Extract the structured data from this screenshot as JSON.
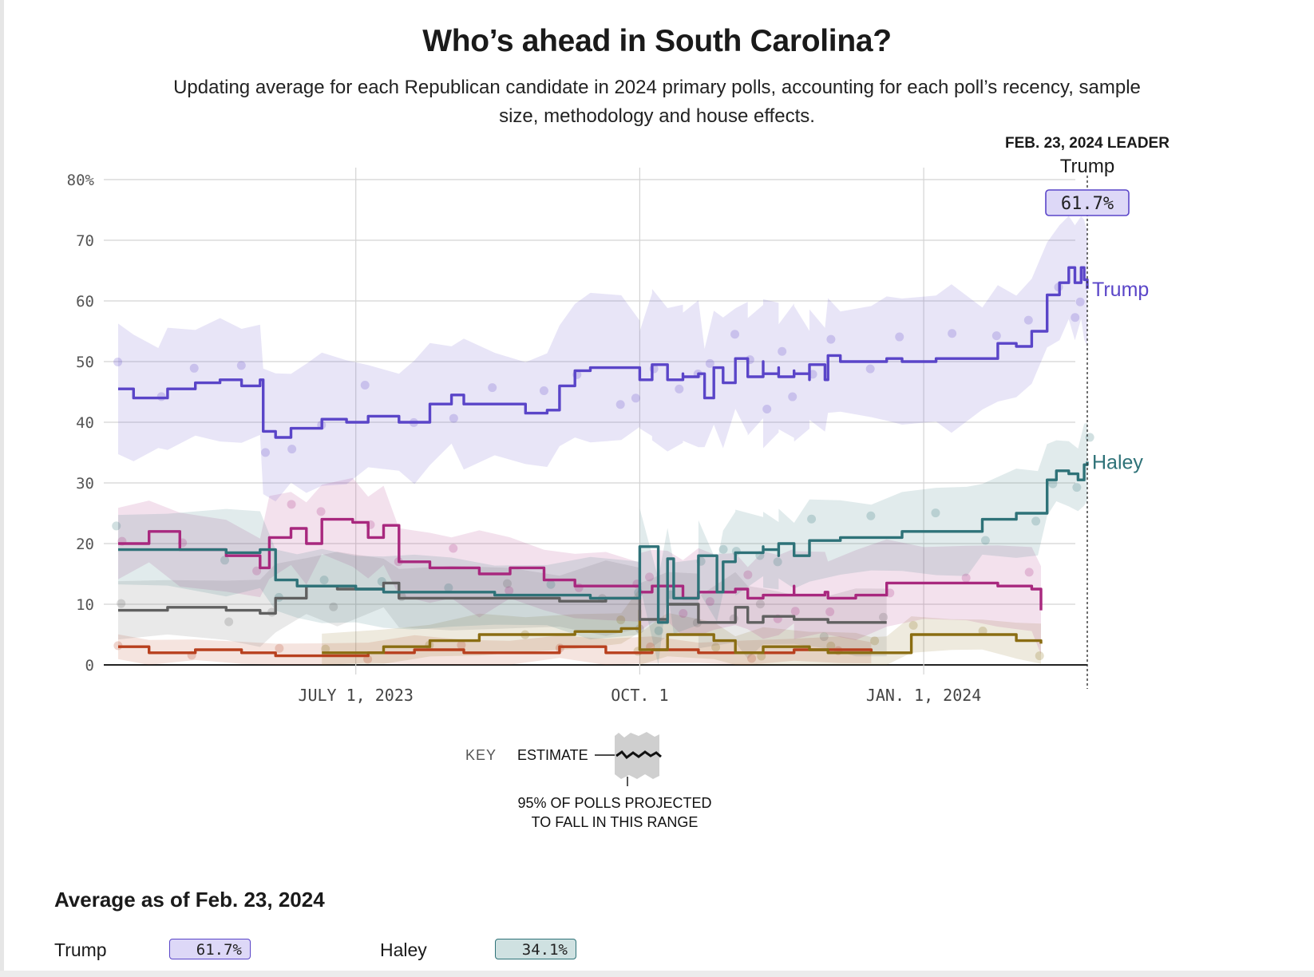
{
  "title": "Who’s ahead in South Carolina?",
  "subtitle": "Updating average for each Republican candidate in 2024 primary polls, accounting for each poll’s recency, sample size, methodology and house effects.",
  "leader": {
    "heading": "FEB. 23, 2024 LEADER",
    "name": "Trump",
    "value": "61.7%"
  },
  "key": {
    "label": "KEY",
    "estimate": "ESTIMATE",
    "range_line1": "95% OF POLLS PROJECTED",
    "range_line2": "TO FALL IN THIS RANGE"
  },
  "average": {
    "heading": "Average as of Feb. 23, 2024",
    "rows": [
      {
        "name": "Trump",
        "value": "61.7%"
      },
      {
        "name": "Haley",
        "value": "34.1%"
      }
    ]
  },
  "colors": {
    "trump": "#5a45c8",
    "haley": "#2e7278",
    "magenta": "#a8287e",
    "gray": "#606060",
    "olive": "#8a6d12",
    "orange": "#b8401e",
    "trump_badge": "#ddd8f7",
    "haley_badge": "#cfe1e1"
  },
  "chart_data": {
    "type": "line",
    "x_ticks": [
      "JULY 1, 2023",
      "OCT. 1",
      "JAN. 1, 2024"
    ],
    "x_range": [
      "2023-04-15",
      "2024-02-23"
    ],
    "y_ticks": [
      "80%",
      "70",
      "60",
      "50",
      "40",
      "30",
      "20",
      "10",
      "0"
    ],
    "ylim": [
      0,
      80
    ],
    "grid": true,
    "series": [
      {
        "name": "Trump",
        "color_key": "trump",
        "band_width": 10,
        "labeled": true,
        "points": [
          [
            "2023-04-15",
            45.5
          ],
          [
            "2023-04-20",
            44
          ],
          [
            "2023-04-28",
            44
          ],
          [
            "2023-05-01",
            45.5
          ],
          [
            "2023-05-10",
            46.5
          ],
          [
            "2023-05-18",
            47
          ],
          [
            "2023-05-25",
            46
          ],
          [
            "2023-05-31",
            47
          ],
          [
            "2023-06-01",
            38.5
          ],
          [
            "2023-06-05",
            37.5
          ],
          [
            "2023-06-10",
            39
          ],
          [
            "2023-06-15",
            39
          ],
          [
            "2023-06-20",
            40.5
          ],
          [
            "2023-06-28",
            40
          ],
          [
            "2023-07-05",
            41
          ],
          [
            "2023-07-15",
            40
          ],
          [
            "2023-07-20",
            40
          ],
          [
            "2023-07-25",
            43
          ],
          [
            "2023-08-01",
            44.5
          ],
          [
            "2023-08-05",
            43
          ],
          [
            "2023-08-15",
            43
          ],
          [
            "2023-08-25",
            41.5
          ],
          [
            "2023-09-01",
            42
          ],
          [
            "2023-09-05",
            46
          ],
          [
            "2023-09-10",
            48.5
          ],
          [
            "2023-09-15",
            49
          ],
          [
            "2023-09-25",
            49
          ],
          [
            "2023-10-01",
            48
          ],
          [
            "2023-10-05",
            49.5
          ],
          [
            "2023-10-15",
            48
          ],
          [
            "2023-10-22",
            44
          ],
          [
            "2023-10-28",
            46.5
          ],
          [
            "2023-11-05",
            49
          ],
          [
            "2023-11-10",
            50
          ],
          [
            "2023-11-15",
            49
          ],
          [
            "2023-11-20",
            48.5
          ],
          [
            "2023-11-25",
            47
          ],
          [
            "2023-11-30",
            47
          ],
          [
            "2023-10-01",
            47
          ],
          [
            "2023-10-05",
            49.5
          ],
          [
            "2023-10-10",
            47
          ],
          [
            "2023-10-15",
            47.5
          ],
          [
            "2023-10-20",
            48
          ],
          [
            "2023-10-25",
            49
          ],
          [
            "2023-11-01",
            50.5
          ],
          [
            "2023-11-05",
            47.5
          ],
          [
            "2023-11-10",
            48
          ],
          [
            "2023-11-15",
            47.5
          ],
          [
            "2023-11-20",
            48
          ],
          [
            "2023-11-25",
            49.5
          ],
          [
            "2023-12-01",
            51
          ],
          [
            "2023-12-05",
            50
          ],
          [
            "2023-12-15",
            50
          ],
          [
            "2023-12-20",
            50.5
          ],
          [
            "2023-12-25",
            50
          ],
          [
            "2024-01-05",
            50.5
          ],
          [
            "2024-01-10",
            50.5
          ],
          [
            "2024-01-20",
            50.5
          ],
          [
            "2024-01-25",
            53
          ],
          [
            "2024-01-31",
            52.5
          ],
          [
            "2024-02-05",
            55
          ],
          [
            "2024-02-10",
            61
          ],
          [
            "2024-02-14",
            63
          ],
          [
            "2024-02-17",
            65.5
          ],
          [
            "2024-02-19",
            63
          ],
          [
            "2024-02-21",
            65.5
          ],
          [
            "2024-02-22",
            63.5
          ],
          [
            "2024-02-23",
            62
          ]
        ]
      },
      {
        "name": "Haley",
        "color_key": "haley",
        "band_width": 6,
        "labeled": true,
        "points": [
          [
            "2023-04-15",
            19
          ],
          [
            "2023-05-01",
            19
          ],
          [
            "2023-05-20",
            18.5
          ],
          [
            "2023-05-31",
            19
          ],
          [
            "2023-06-05",
            14
          ],
          [
            "2023-06-12",
            13
          ],
          [
            "2023-06-20",
            13
          ],
          [
            "2023-07-01",
            12.5
          ],
          [
            "2023-07-10",
            12
          ],
          [
            "2023-07-20",
            12
          ],
          [
            "2023-08-01",
            12
          ],
          [
            "2023-08-15",
            11.5
          ],
          [
            "2023-09-01",
            11.5
          ],
          [
            "2023-09-15",
            11
          ],
          [
            "2023-10-01",
            11
          ],
          [
            "2023-10-07",
            7
          ],
          [
            "2023-10-12",
            11
          ],
          [
            "2023-10-20",
            12
          ],
          [
            "2023-10-26",
            12
          ],
          [
            "2023-10-28",
            17
          ],
          [
            "2023-11-01",
            18.5
          ],
          [
            "2023-11-10",
            19.5
          ],
          [
            "2023-11-15",
            18
          ],
          [
            "2023-11-20",
            18
          ],
          [
            "2023-10-01",
            19.5
          ],
          [
            "2023-10-10",
            17.5
          ],
          [
            "2023-10-20",
            18
          ],
          [
            "2023-11-01",
            18.5
          ],
          [
            "2023-11-10",
            19
          ],
          [
            "2023-11-15",
            20
          ],
          [
            "2023-11-25",
            20.5
          ],
          [
            "2023-12-05",
            21
          ],
          [
            "2023-12-15",
            21
          ],
          [
            "2023-12-25",
            22
          ],
          [
            "2024-01-05",
            22
          ],
          [
            "2024-01-15",
            22
          ],
          [
            "2024-01-20",
            24
          ],
          [
            "2024-01-31",
            25
          ],
          [
            "2024-02-07",
            25
          ],
          [
            "2024-02-10",
            30.5
          ],
          [
            "2024-02-13",
            32
          ],
          [
            "2024-02-17",
            31.5
          ],
          [
            "2024-02-20",
            30.5
          ],
          [
            "2024-02-22",
            33
          ],
          [
            "2024-02-23",
            33.5
          ]
        ]
      },
      {
        "name": "",
        "color_key": "magenta",
        "band_width": 6,
        "labeled": false,
        "points": [
          [
            "2023-04-15",
            20
          ],
          [
            "2023-04-25",
            22
          ],
          [
            "2023-05-05",
            19
          ],
          [
            "2023-05-20",
            18
          ],
          [
            "2023-05-31",
            16
          ],
          [
            "2023-06-03",
            21
          ],
          [
            "2023-06-10",
            22.5
          ],
          [
            "2023-06-15",
            20
          ],
          [
            "2023-06-20",
            24
          ],
          [
            "2023-06-30",
            23.5
          ],
          [
            "2023-07-05",
            21
          ],
          [
            "2023-07-10",
            23
          ],
          [
            "2023-07-15",
            17
          ],
          [
            "2023-07-25",
            16
          ],
          [
            "2023-08-01",
            16
          ],
          [
            "2023-08-10",
            15
          ],
          [
            "2023-08-20",
            16
          ],
          [
            "2023-08-31",
            14
          ],
          [
            "2023-09-10",
            13
          ],
          [
            "2023-09-20",
            13
          ],
          [
            "2023-10-01",
            12
          ],
          [
            "2023-10-05",
            13
          ],
          [
            "2023-10-15",
            11
          ],
          [
            "2023-10-25",
            12
          ],
          [
            "2023-11-05",
            11
          ],
          [
            "2023-11-15",
            11.5
          ],
          [
            "2023-11-20",
            13
          ],
          [
            "2023-11-30",
            12
          ],
          [
            "2023-10-01",
            12
          ],
          [
            "2023-10-10",
            13
          ],
          [
            "2023-10-20",
            12
          ],
          [
            "2023-11-01",
            12.5
          ],
          [
            "2023-11-10",
            11.5
          ],
          [
            "2023-11-20",
            11.5
          ],
          [
            "2023-12-01",
            11
          ],
          [
            "2023-12-10",
            11.5
          ],
          [
            "2023-12-20",
            13.5
          ],
          [
            "2024-01-01",
            13.5
          ],
          [
            "2024-01-15",
            13.5
          ],
          [
            "2024-01-25",
            13
          ],
          [
            "2024-02-05",
            12.5
          ],
          [
            "2024-02-08",
            9
          ]
        ]
      },
      {
        "name": "",
        "color_key": "gray",
        "band_width": 5,
        "labeled": false,
        "points": [
          [
            "2023-04-15",
            9
          ],
          [
            "2023-05-01",
            9.5
          ],
          [
            "2023-05-20",
            9
          ],
          [
            "2023-05-31",
            8.5
          ],
          [
            "2023-06-05",
            11
          ],
          [
            "2023-06-15",
            13
          ],
          [
            "2023-06-25",
            12.5
          ],
          [
            "2023-07-10",
            13.5
          ],
          [
            "2023-07-15",
            11
          ],
          [
            "2023-08-01",
            11
          ],
          [
            "2023-08-20",
            11
          ],
          [
            "2023-09-05",
            10.5
          ],
          [
            "2023-09-20",
            11
          ],
          [
            "2023-10-01",
            11
          ],
          [
            "2023-10-10",
            10
          ],
          [
            "2023-10-20",
            10
          ],
          [
            "2023-11-01",
            9.5
          ],
          [
            "2023-11-10",
            8
          ],
          [
            "2023-11-20",
            7.5
          ],
          [
            "2023-12-01",
            7
          ],
          [
            "2023-12-10",
            7
          ],
          [
            "2023-12-20",
            7
          ],
          [
            "2023-10-01",
            7.5
          ],
          [
            "2023-10-20",
            7
          ],
          [
            "2023-11-05",
            7
          ]
        ]
      },
      {
        "name": "",
        "color_key": "olive",
        "band_width": 3,
        "labeled": false,
        "points": [
          [
            "2023-06-20",
            2
          ],
          [
            "2023-07-10",
            3
          ],
          [
            "2023-07-25",
            4
          ],
          [
            "2023-08-10",
            5
          ],
          [
            "2023-08-25",
            5
          ],
          [
            "2023-09-10",
            5.5
          ],
          [
            "2023-09-25",
            6
          ],
          [
            "2023-10-01",
            9
          ],
          [
            "2023-10-10",
            5
          ],
          [
            "2023-10-25",
            4
          ],
          [
            "2023-11-10",
            3
          ],
          [
            "2023-11-25",
            2.5
          ],
          [
            "2023-12-10",
            2
          ],
          [
            "2023-12-20",
            2
          ],
          [
            "2023-10-01",
            2.5
          ],
          [
            "2023-11-01",
            2
          ],
          [
            "2023-12-01",
            2
          ],
          [
            "2023-12-15",
            2
          ],
          [
            "2023-12-28",
            5
          ],
          [
            "2024-01-10",
            5
          ],
          [
            "2024-01-20",
            5
          ],
          [
            "2024-01-31",
            4
          ],
          [
            "2024-02-08",
            3.5
          ]
        ]
      },
      {
        "name": "",
        "color_key": "orange",
        "band_width": 2,
        "labeled": false,
        "points": [
          [
            "2023-04-15",
            3
          ],
          [
            "2023-04-25",
            2
          ],
          [
            "2023-05-10",
            2.5
          ],
          [
            "2023-05-25",
            2
          ],
          [
            "2023-06-05",
            1.5
          ],
          [
            "2023-06-20",
            1.5
          ],
          [
            "2023-07-05",
            2
          ],
          [
            "2023-07-20",
            2.5
          ],
          [
            "2023-08-05",
            2
          ],
          [
            "2023-08-20",
            2
          ],
          [
            "2023-09-05",
            3
          ],
          [
            "2023-09-20",
            2
          ],
          [
            "2023-10-05",
            2.5
          ],
          [
            "2023-10-20",
            2
          ],
          [
            "2023-11-05",
            2
          ],
          [
            "2023-11-20",
            2.5
          ],
          [
            "2023-12-05",
            2.5
          ],
          [
            "2023-12-15",
            2
          ]
        ]
      }
    ]
  }
}
